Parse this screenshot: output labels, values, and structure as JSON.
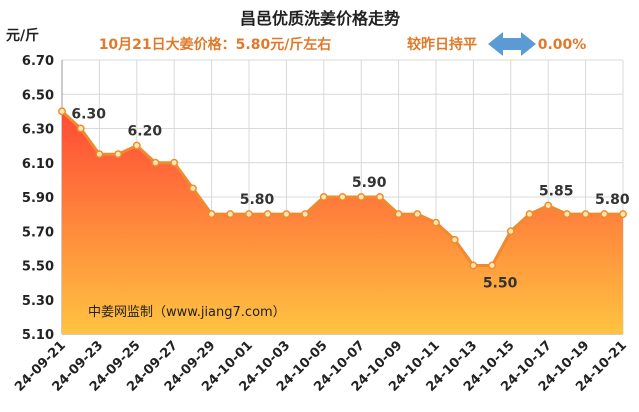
{
  "chart_data": {
    "type": "area",
    "title": "昌邑优质洗姜价格走势",
    "subtitle_left": "10月21日大姜价格：5.80元/斤左右",
    "subtitle_right": "较昨日持平",
    "change": "0.00%",
    "ylabel": "元/斤",
    "source": "中姜网监制（www.jiang7.com）",
    "ylim": [
      5.1,
      6.7
    ],
    "yticks": [
      "6.70",
      "6.50",
      "6.30",
      "6.10",
      "5.90",
      "5.70",
      "5.50",
      "5.30",
      "5.10"
    ],
    "x": [
      "24-09-21",
      "24-09-22",
      "24-09-23",
      "24-09-24",
      "24-09-25",
      "24-09-26",
      "24-09-27",
      "24-09-28",
      "24-09-29",
      "24-09-30",
      "24-10-01",
      "24-10-02",
      "24-10-03",
      "24-10-04",
      "24-10-05",
      "24-10-06",
      "24-10-07",
      "24-10-08",
      "24-10-09",
      "24-10-10",
      "24-10-11",
      "24-10-12",
      "24-10-13",
      "24-10-14",
      "24-10-15",
      "24-10-16",
      "24-10-17",
      "24-10-18",
      "24-10-19",
      "24-10-20",
      "24-10-21"
    ],
    "xtick_labels": [
      "24-09-21",
      "24-09-23",
      "24-09-25",
      "24-09-27",
      "24-09-29",
      "24-10-01",
      "24-10-03",
      "24-10-05",
      "24-10-07",
      "24-10-09",
      "24-10-11",
      "24-10-13",
      "24-10-15",
      "24-10-17",
      "24-10-19",
      "24-10-21"
    ],
    "values": [
      6.4,
      6.3,
      6.15,
      6.15,
      6.2,
      6.1,
      6.1,
      5.95,
      5.8,
      5.8,
      5.8,
      5.8,
      5.8,
      5.8,
      5.9,
      5.9,
      5.9,
      5.9,
      5.8,
      5.8,
      5.75,
      5.65,
      5.5,
      5.5,
      5.7,
      5.8,
      5.85,
      5.8,
      5.8,
      5.8,
      5.8
    ],
    "data_labels": [
      {
        "index": 1,
        "text": "6.30"
      },
      {
        "index": 4,
        "text": "6.20"
      },
      {
        "index": 10,
        "text": "5.80"
      },
      {
        "index": 16,
        "text": "5.90"
      },
      {
        "index": 23,
        "text": "5.50"
      },
      {
        "index": 26,
        "text": "5.85"
      },
      {
        "index": 29,
        "text": "5.80"
      }
    ],
    "grid": true,
    "colors": {
      "line": "#f08a2e",
      "marker_fill": "#ffe9b0",
      "area_top": "#ff4a36",
      "area_bottom": "#ffc341",
      "arrow": "#5b9bd5",
      "text_accent": "#e07a2a"
    }
  }
}
